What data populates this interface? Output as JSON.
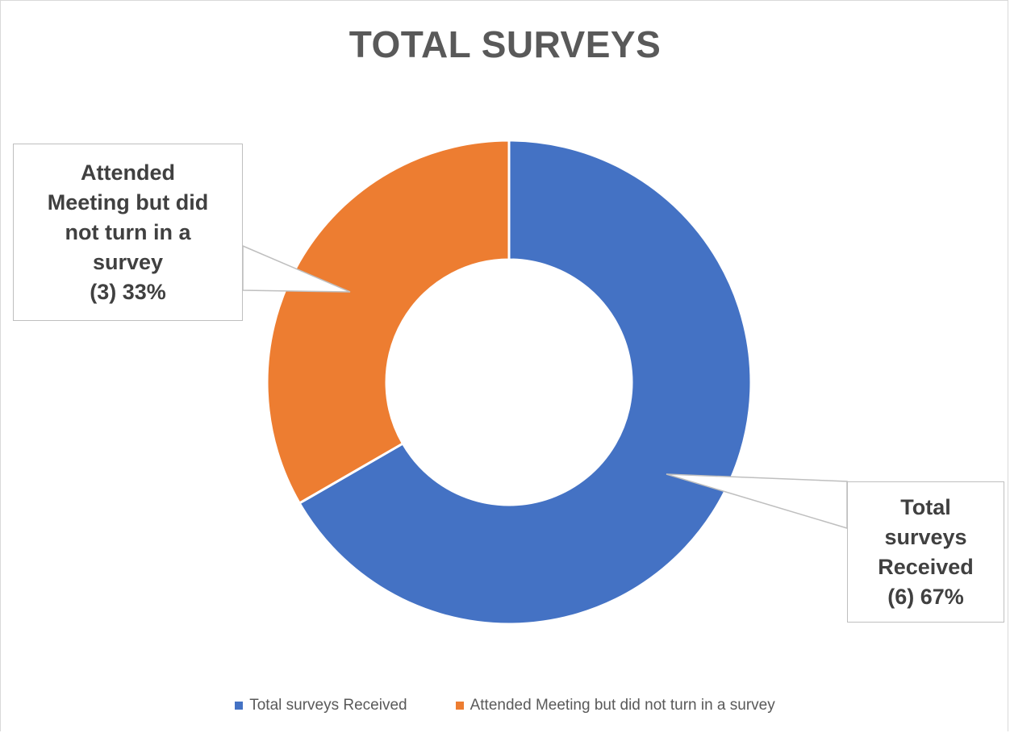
{
  "chart_data": {
    "type": "pie",
    "variant": "doughnut",
    "title": "TOTAL SURVEYS",
    "series": [
      {
        "name": "Total surveys Received",
        "value": 6,
        "percent": 67,
        "color": "#4472C4"
      },
      {
        "name": "Attended Meeting but did not turn in a survey",
        "value": 3,
        "percent": 33,
        "color": "#ED7D31"
      }
    ],
    "data_labels": [
      {
        "lines": [
          "Attended",
          "Meeting but did",
          "not turn in a",
          "survey",
          "(3) 33%"
        ]
      },
      {
        "lines": [
          "Total",
          "surveys",
          "Received",
          "(6) 67%"
        ]
      }
    ],
    "legend": {
      "position": "bottom",
      "items": [
        "Total surveys Received",
        "Attended Meeting but did not turn in a survey"
      ]
    }
  }
}
